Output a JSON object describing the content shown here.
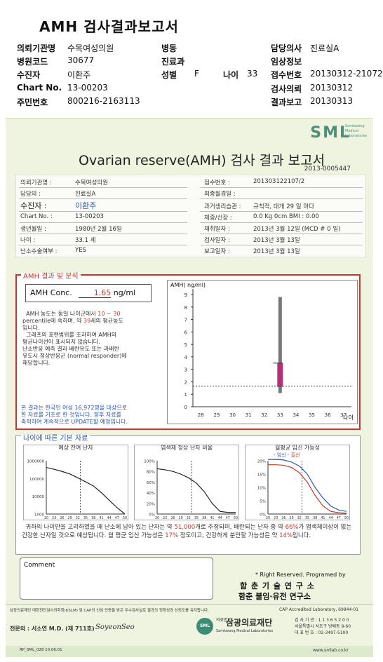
{
  "title": "AMH 검사결과보고서",
  "header": {
    "institution_label": "의뢰기관명",
    "institution": "수목여성의원",
    "ward_label": "병동",
    "doctor_label": "담당의사",
    "doctor": "진료실A",
    "hospital_code_label": "병원코드",
    "hospital_code": "30677",
    "dept_label": "진료과",
    "clinical_label": "임상정보",
    "patient_label": "수진자",
    "patient": "이환주",
    "sex_label": "성별",
    "sex": "F",
    "age_label": "나이",
    "age": "33",
    "receipt_label": "접수번호",
    "receipt": "20130312-21072",
    "chart_label": "Chart No.",
    "chart": "13-00203",
    "request_label": "검사의뢰",
    "request": "20130312",
    "id_label": "주민번호",
    "id": "800216-2163113",
    "report_label": "결과보고",
    "report": "20130313"
  },
  "sheet": {
    "logo": "SML",
    "logo_sub": "Samkwang Medical Laboratories",
    "report_title": "Ovarian reserve(AMH) 검사 결과 보고서",
    "report_no": "2013-0005447",
    "info": {
      "inst_label": "의뢰기관명 :",
      "inst": "수목여성의원",
      "receipt_label": "접수번호 :",
      "receipt": "201303122107/2",
      "doctor_label": "담당의 :",
      "doctor": "진료실A",
      "last_visit_label": "최종월경일 :",
      "patient_label": "수진자 :",
      "patient": "이환주",
      "history_label": "과거생리습관 :",
      "history": "규칙적, 대개   29 일 마다",
      "chart_label": "Chart No. :",
      "chart": "13-00203",
      "body_label": "체중/신장 :",
      "body": "0.0  Kg      0cm   BMI :   0.00",
      "birth_label": "생년월일 :",
      "birth": "1980년 2월 16일",
      "collect_label": "채취일자 :",
      "collect": "2013년 3월 12일  (MCD #  0 일)",
      "age_label": "나이 :",
      "age": "33.1 세",
      "test_label": "검사일자 :",
      "test": "2013년 3월 13일",
      "surgery_label": "난소수술여부 :",
      "surgery": "YES",
      "report_label": "보고일자 :",
      "report": "2013년 3월 13일"
    },
    "amh": {
      "section": "AMH 결과 및 분석",
      "conc_label": "AMH Conc.",
      "conc_value": "1.65",
      "conc_unit": "ng/ml",
      "d1": "AMH 농도는 동일 나이군에서",
      "d1_range": "10 ~ 30",
      "d2": "percentile에 속하며, 약",
      "d2_age": "39",
      "d2_tail": "세의 평균농도",
      "d3": "입니다.",
      "d4": "그래프의 표현범위를 초과하여 AMH의",
      "d5": "평균나이선이 표시되지 않습니다.",
      "d6": "난소반응 예측 결과 배란유도 또는 과배란",
      "d7": "유도시 정상반응군 (normal responder)에",
      "d8": "해당합니다.",
      "note1": "본 결과는 한국인 여성 16,972명을 대상으로",
      "note2": "한 자료를 기초로 한 것입니다. 향후 자료를",
      "note3": "축적하여 계속적으로 UPDATE할 예정입니다."
    },
    "chart": {
      "ylabel": "AMH( ng/ml)",
      "xlabel": "나이"
    },
    "age_section": {
      "title": "나이에 따른 기본 자료",
      "chart1_title": "예상 잔여 난자",
      "chart2_title": "염색체 정상 난자 비율",
      "chart3_title": "월평균 임신 가능성",
      "chart3_legend1": "임신",
      "chart3_legend2": "출산",
      "summary1": "귀하의 나이만을 고려하였을 때 난소에 남아 있는 난자는 약",
      "summary_eggs": "51,000",
      "summary2": "개로 추정되며, 배란되는 난자 중",
      "summary3": "약",
      "summary_pct": "66%",
      "summary4": "가 염색체이상이 없는 건강한 난자일 것으로 예상됩니다. 월 평균 임신 가능성은",
      "summary_preg": "17%",
      "summary5": "정도이고,",
      "summary6": "건강하게 분만할 가능성은 약",
      "summary_birth": "14%",
      "summary7": "입니다."
    },
    "comment_label": "Comment",
    "rights": "* Right Reserved. Programed by",
    "inst1": "함 춘  기 술  연 구 소",
    "inst2": "함춘 불임·유전 연구소",
    "cert": "삼광의료재단 대한진단검사의학회(KSLM) 및 CAP의 신임 인증을 받은 우수검사실로 결과의 정확성과 신뢰도를 유지합니다.",
    "cap": "CAP  Accredited  Laboratory,  69944-01",
    "specialist": "전문의 : 서소연 M.D. (제 711호)",
    "signature": "SoyeonSeo",
    "foundation": "삼광의료재단",
    "foundation_en": "Samkwang Medical Laboratories",
    "foundation_prefix": "의료법인",
    "contact1": "검 사 기 관 : 1 1 3 6 5 2 0 0",
    "contact2": "서울특별시 서초구 방배동 9-60",
    "contact3": "대 표 번 호 : 02-3497-5100",
    "form_no": "RP_SML_028  10.06.01",
    "website": "www.smlab.co.kr"
  },
  "chart_data": [
    {
      "type": "bar",
      "ylabel": "AMH( ng/ml)",
      "xlabel": "나이",
      "x_ticks": [
        28,
        29,
        30,
        31,
        32,
        33,
        34,
        35,
        36,
        37
      ],
      "y_ticks": [
        0,
        1,
        2,
        3,
        4,
        5,
        6,
        7,
        8,
        9
      ],
      "ylim": [
        0,
        9
      ],
      "xlim": [
        27.5,
        37.5
      ],
      "range_bar": {
        "x": 33,
        "low": 1.1,
        "high": 8.8
      },
      "iqr_box": {
        "x": 33,
        "low": 1.6,
        "high": 3.5
      },
      "value_line": 1.65
    },
    {
      "type": "line",
      "title": "예상 잔여 난자",
      "y_ticks": [
        "1000000",
        "100000",
        "10000",
        "1000"
      ],
      "x_ticks": [
        20,
        23,
        26,
        29,
        32,
        35,
        38,
        41,
        44,
        47,
        50
      ],
      "x": [
        20,
        23,
        26,
        29,
        32,
        35,
        38,
        41,
        44,
        47,
        50
      ],
      "values": [
        420000,
        330000,
        250000,
        180000,
        110000,
        65000,
        38000,
        16000,
        6000,
        2300,
        900
      ],
      "marker_age": 33
    },
    {
      "type": "line",
      "title": "염색체 정상 난자 비율",
      "y_ticks": [
        "100%",
        "80%",
        "60%",
        "40%",
        "20%",
        "0%"
      ],
      "x_ticks": [
        20,
        23,
        26,
        29,
        32,
        35,
        38,
        41,
        44,
        47,
        50
      ],
      "x": [
        20,
        23,
        26,
        29,
        32,
        35,
        38,
        41,
        44,
        47,
        50
      ],
      "values": [
        85,
        83,
        80,
        75,
        68,
        58,
        42,
        20,
        5,
        3,
        3
      ],
      "marker_age": 33
    },
    {
      "type": "line",
      "title": "월평균 임신 가능성",
      "y_ticks": [
        "20%",
        "15%",
        "10%",
        "5%",
        "0%"
      ],
      "x_ticks": [
        20,
        23,
        26,
        29,
        32,
        35,
        38,
        41,
        44,
        47,
        50
      ],
      "series": [
        {
          "name": "임신",
          "x": [
            20,
            23,
            26,
            29,
            32,
            35,
            38,
            41,
            44,
            47,
            50
          ],
          "values": [
            20.5,
            20.5,
            20.3,
            19.5,
            18,
            15,
            10,
            6,
            3,
            1.5,
            1
          ]
        },
        {
          "name": "출산",
          "x": [
            20,
            23,
            26,
            29,
            32,
            35,
            38,
            41,
            44,
            47,
            50
          ],
          "values": [
            18.5,
            18.5,
            18.3,
            17.5,
            15.5,
            12,
            7,
            3,
            1,
            0.5,
            0.3
          ]
        }
      ],
      "marker_age": 33
    }
  ]
}
